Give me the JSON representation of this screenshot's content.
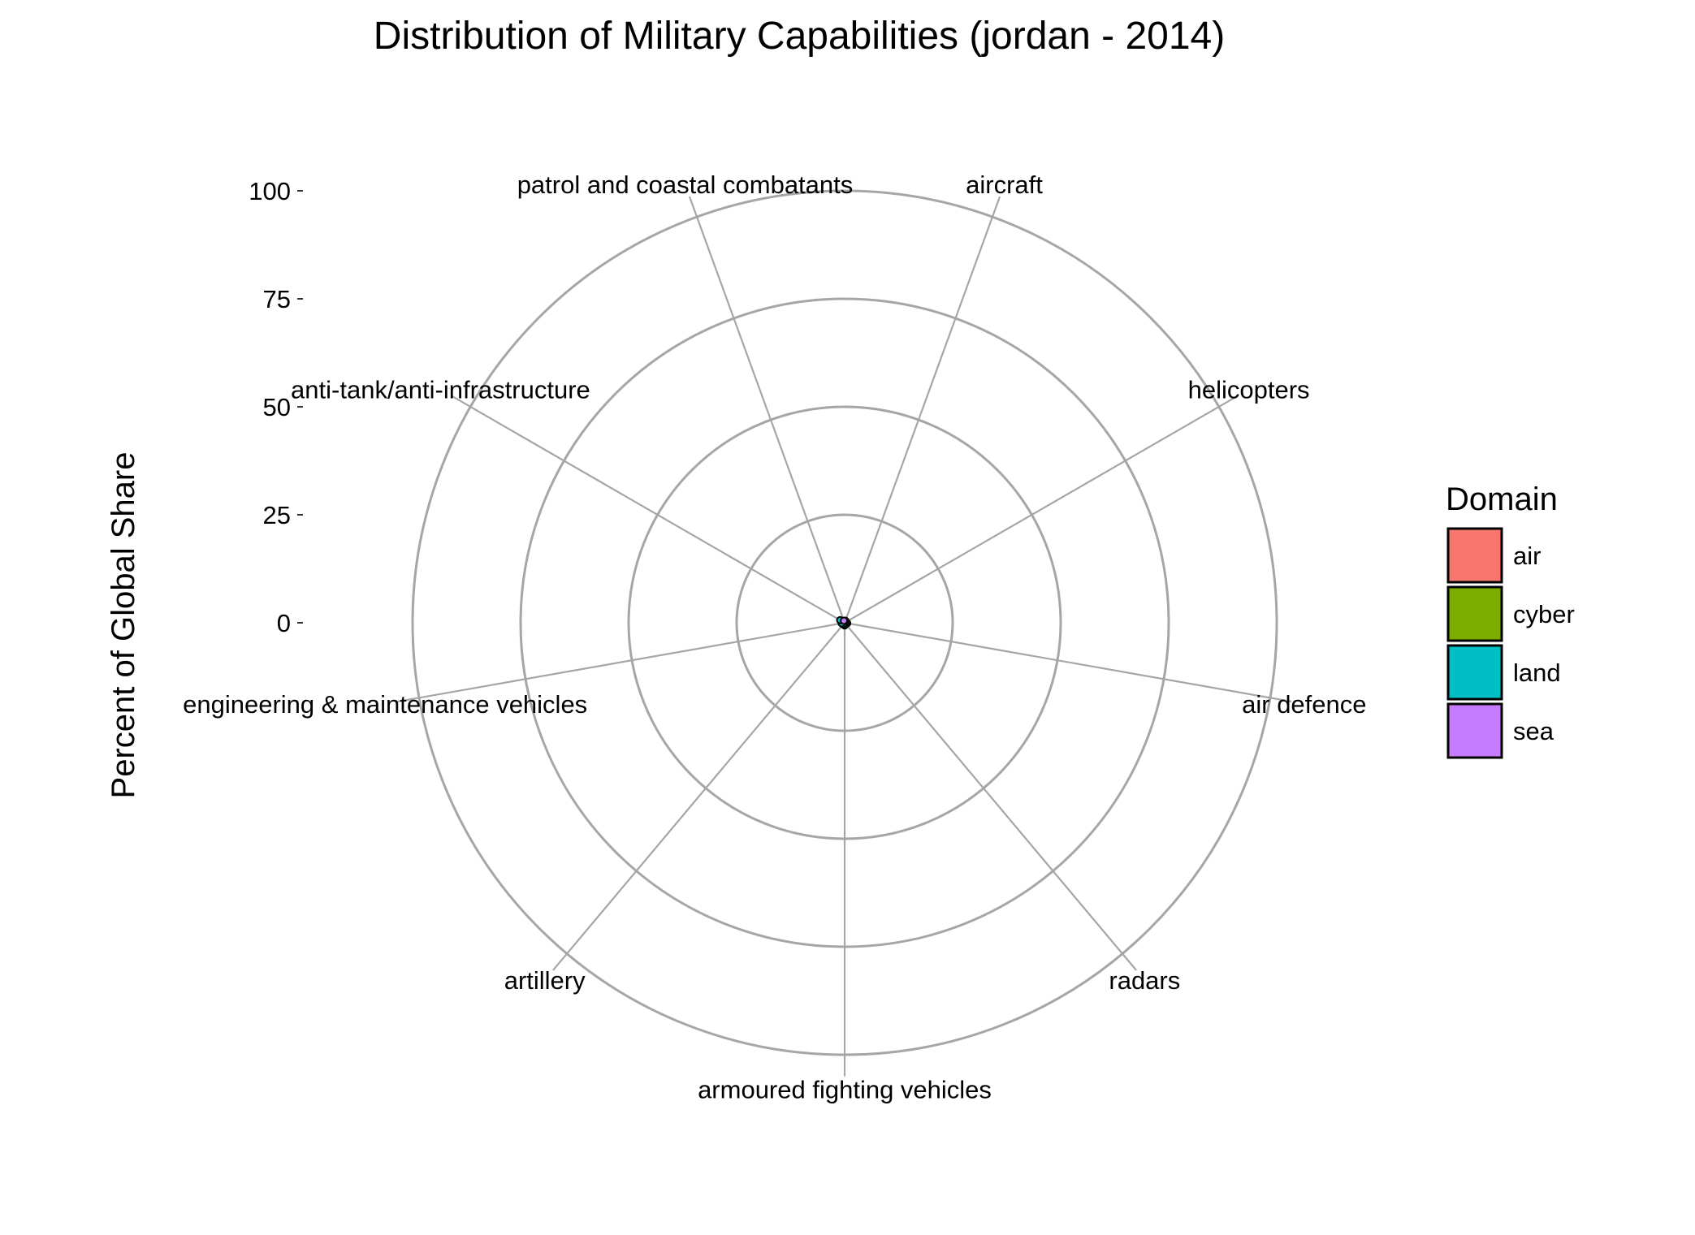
{
  "chart_data": {
    "type": "radar",
    "title": "Distribution of Military Capabilities (jordan - 2014)",
    "ylabel": "Percent of Global Share",
    "ylim": [
      0,
      100
    ],
    "ticks": [
      0,
      25,
      50,
      75,
      100
    ],
    "grid": true,
    "categories": [
      "aircraft",
      "helicopters",
      "air defence",
      "radars",
      "armoured fighting vehicles",
      "artillery",
      "engineering & maintenance vehicles",
      "anti-tank/anti-infrastructure",
      "patrol and coastal combatants"
    ],
    "category_domain": [
      "air",
      "air",
      "air",
      "air",
      "land",
      "land",
      "land",
      "land",
      "sea"
    ],
    "values": [
      0.5,
      0.3,
      0.6,
      0.4,
      0.6,
      0.5,
      0.7,
      1.2,
      0.5
    ],
    "legend": {
      "title": "Domain",
      "position": "right",
      "items": [
        {
          "label": "air",
          "color": "#F8766D"
        },
        {
          "label": "cyber",
          "color": "#7CAE00"
        },
        {
          "label": "land",
          "color": "#00BFC4"
        },
        {
          "label": "sea",
          "color": "#C77CFF"
        }
      ]
    }
  }
}
